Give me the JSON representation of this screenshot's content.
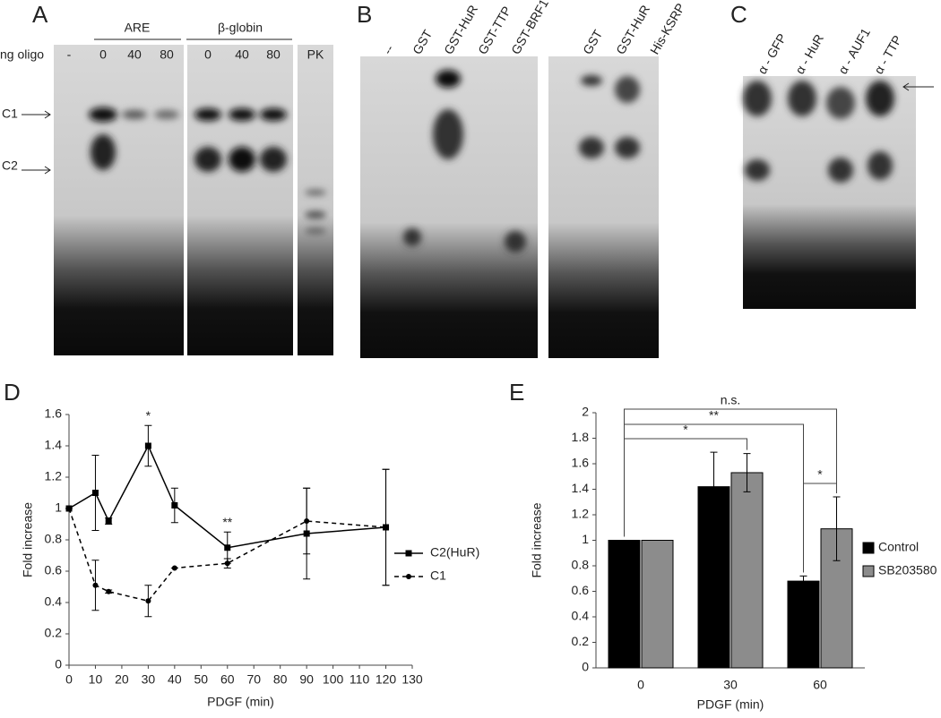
{
  "gels": {
    "A": {
      "panel": "A",
      "ng_oligo": "ng oligo",
      "minus": "-",
      "groups": [
        "ARE",
        "β-globin"
      ],
      "lanes": [
        "0",
        "40",
        "80",
        "0",
        "40",
        "80"
      ],
      "pk": "PK",
      "bands": [
        "C1",
        "C2"
      ]
    },
    "B": {
      "panel": "B",
      "lanes": [
        "--",
        "GST",
        "GST-HuR",
        "GST-TTP",
        "GST-BRF1",
        "GST",
        "GST-HuR",
        "His-KSRP"
      ]
    },
    "C": {
      "panel": "C",
      "lanes": [
        "α - GFP",
        "α - HuR",
        "α - AUF1",
        "α - TTP"
      ]
    }
  },
  "chart_data": [
    {
      "type": "line",
      "panel": "D",
      "xlabel": "PDGF (min)",
      "ylabel": "Fold increase",
      "x": [
        0,
        10,
        15,
        30,
        40,
        60,
        90,
        120
      ],
      "series": [
        {
          "name": "C2(HuR)",
          "color": "#000000",
          "marker": "square",
          "dashed": false,
          "values": [
            1,
            1.1,
            0.92,
            1.4,
            1.02,
            0.75,
            0.84,
            0.88
          ],
          "errors": [
            0,
            0.24,
            0.02,
            0.13,
            0.11,
            0.1,
            0.29,
            0.37
          ]
        },
        {
          "name": "C1",
          "color": "#000000",
          "marker": "circle",
          "dashed": true,
          "values": [
            1,
            0.51,
            0.47,
            0.41,
            0.62,
            0.65,
            0.92,
            0.88
          ],
          "errors": [
            0,
            0.16,
            0.01,
            0.1,
            0,
            0.03,
            0.21,
            0.37
          ]
        }
      ],
      "annotations": [
        {
          "text": "*",
          "x": 30
        },
        {
          "text": "**",
          "x": 60
        }
      ],
      "xlim": [
        0,
        130
      ],
      "xticks": [
        0,
        10,
        20,
        30,
        40,
        50,
        60,
        70,
        80,
        90,
        100,
        110,
        120,
        130
      ],
      "ylim": [
        0,
        1.6
      ],
      "yticks": [
        0,
        0.2,
        0.4,
        0.6,
        0.8,
        1,
        1.2,
        1.4,
        1.6
      ]
    },
    {
      "type": "bar",
      "panel": "E",
      "xlabel": "PDGF (min)",
      "ylabel": "Fold increase",
      "categories": [
        "0",
        "30",
        "60"
      ],
      "series": [
        {
          "name": "Control",
          "color": "#000000",
          "values": [
            1,
            1.42,
            0.68
          ],
          "errors": [
            0,
            0.27,
            0.04
          ]
        },
        {
          "name": "SB203580",
          "color": "#8c8c8c",
          "values": [
            1,
            1.53,
            1.09
          ],
          "errors": [
            0,
            0.15,
            0.25
          ]
        }
      ],
      "annotations": [
        {
          "text": "*",
          "from": [
            0,
            0
          ],
          "to": [
            1,
            1
          ]
        },
        {
          "text": "**",
          "from": [
            0,
            0
          ],
          "to": [
            2,
            0
          ]
        },
        {
          "text": "n.s.",
          "from": [
            0,
            0
          ],
          "to": [
            2,
            1
          ]
        },
        {
          "text": "*",
          "from": [
            2,
            0
          ],
          "to": [
            2,
            1
          ]
        }
      ],
      "ylim": [
        0,
        2
      ],
      "yticks": [
        0,
        0.2,
        0.4,
        0.6,
        0.8,
        1,
        1.2,
        1.4,
        1.6,
        1.8,
        2
      ]
    }
  ]
}
